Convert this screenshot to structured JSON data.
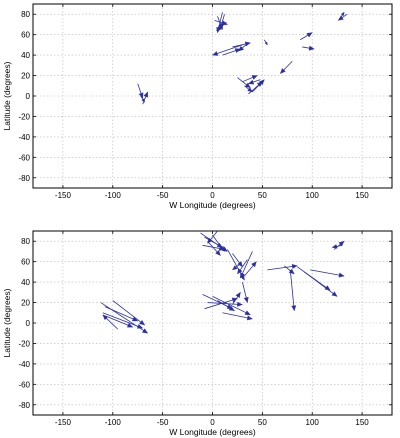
{
  "chart_data": [
    {
      "type": "quiver",
      "xlabel": "W Longitude (degrees)",
      "ylabel": "Latitude (degrees)",
      "xlim": [
        -180,
        180
      ],
      "ylim": [
        -90,
        90
      ],
      "xticks": [
        -150,
        -100,
        -50,
        0,
        50,
        100,
        150
      ],
      "yticks": [
        -80,
        -60,
        -40,
        -20,
        0,
        20,
        40,
        60,
        80
      ],
      "grid": true,
      "color": "#2b2f9e",
      "vectors": [
        [
          10,
          82,
          5,
          62
        ],
        [
          5,
          78,
          10,
          65
        ],
        [
          12,
          80,
          8,
          66
        ],
        [
          2,
          74,
          15,
          70
        ],
        [
          14,
          72,
          4,
          64
        ],
        [
          30,
          50,
          0,
          40
        ],
        [
          20,
          48,
          38,
          52
        ],
        [
          36,
          52,
          26,
          44
        ],
        [
          10,
          40,
          28,
          46
        ],
        [
          52,
          55,
          55,
          50
        ],
        [
          80,
          34,
          68,
          22
        ],
        [
          88,
          55,
          100,
          62
        ],
        [
          90,
          48,
          102,
          46
        ],
        [
          128,
          76,
          132,
          82
        ],
        [
          135,
          80,
          126,
          74
        ],
        [
          25,
          18,
          38,
          8
        ],
        [
          30,
          14,
          45,
          20
        ],
        [
          40,
          4,
          52,
          16
        ],
        [
          32,
          10,
          40,
          4
        ],
        [
          48,
          16,
          36,
          12
        ],
        [
          36,
          2,
          50,
          14
        ],
        [
          -75,
          12,
          -70,
          -2
        ],
        [
          -72,
          0,
          -68,
          -6
        ],
        [
          -70,
          -8,
          -65,
          4
        ]
      ]
    },
    {
      "type": "quiver",
      "xlabel": "W Longitude (degrees)",
      "ylabel": "Latitude (degrees)",
      "xlim": [
        -180,
        180
      ],
      "ylim": [
        -90,
        90
      ],
      "xticks": [
        -150,
        -100,
        -50,
        0,
        50,
        100,
        150
      ],
      "yticks": [
        -80,
        -60,
        -40,
        -20,
        0,
        20,
        40,
        60,
        80
      ],
      "grid": true,
      "color": "#2b2f9e",
      "vectors": [
        [
          -12,
          88,
          15,
          70
        ],
        [
          -8,
          84,
          10,
          74
        ],
        [
          0,
          86,
          12,
          70
        ],
        [
          -5,
          80,
          8,
          66
        ],
        [
          -10,
          76,
          12,
          72
        ],
        [
          5,
          90,
          -5,
          78
        ],
        [
          20,
          68,
          30,
          55
        ],
        [
          15,
          72,
          32,
          42
        ],
        [
          35,
          62,
          25,
          48
        ],
        [
          40,
          70,
          28,
          44
        ],
        [
          32,
          46,
          44,
          60
        ],
        [
          28,
          58,
          20,
          52
        ],
        [
          -10,
          28,
          20,
          14
        ],
        [
          -5,
          20,
          30,
          18
        ],
        [
          0,
          26,
          38,
          8
        ],
        [
          -8,
          14,
          25,
          24
        ],
        [
          10,
          10,
          40,
          4
        ],
        [
          5,
          22,
          22,
          12
        ],
        [
          20,
          18,
          28,
          30
        ],
        [
          30,
          40,
          35,
          20
        ],
        [
          -112,
          20,
          -65,
          -10
        ],
        [
          -110,
          10,
          -70,
          -5
        ],
        [
          -108,
          16,
          -75,
          2
        ],
        [
          -100,
          22,
          -68,
          -2
        ],
        [
          -95,
          -6,
          -110,
          8
        ],
        [
          -105,
          6,
          -80,
          -4
        ],
        [
          55,
          52,
          85,
          56
        ],
        [
          78,
          52,
          82,
          12
        ],
        [
          72,
          56,
          82,
          48
        ],
        [
          98,
          52,
          132,
          46
        ],
        [
          92,
          50,
          125,
          26
        ],
        [
          85,
          55,
          118,
          32
        ],
        [
          122,
          72,
          132,
          80
        ],
        [
          130,
          76,
          120,
          74
        ]
      ]
    }
  ]
}
